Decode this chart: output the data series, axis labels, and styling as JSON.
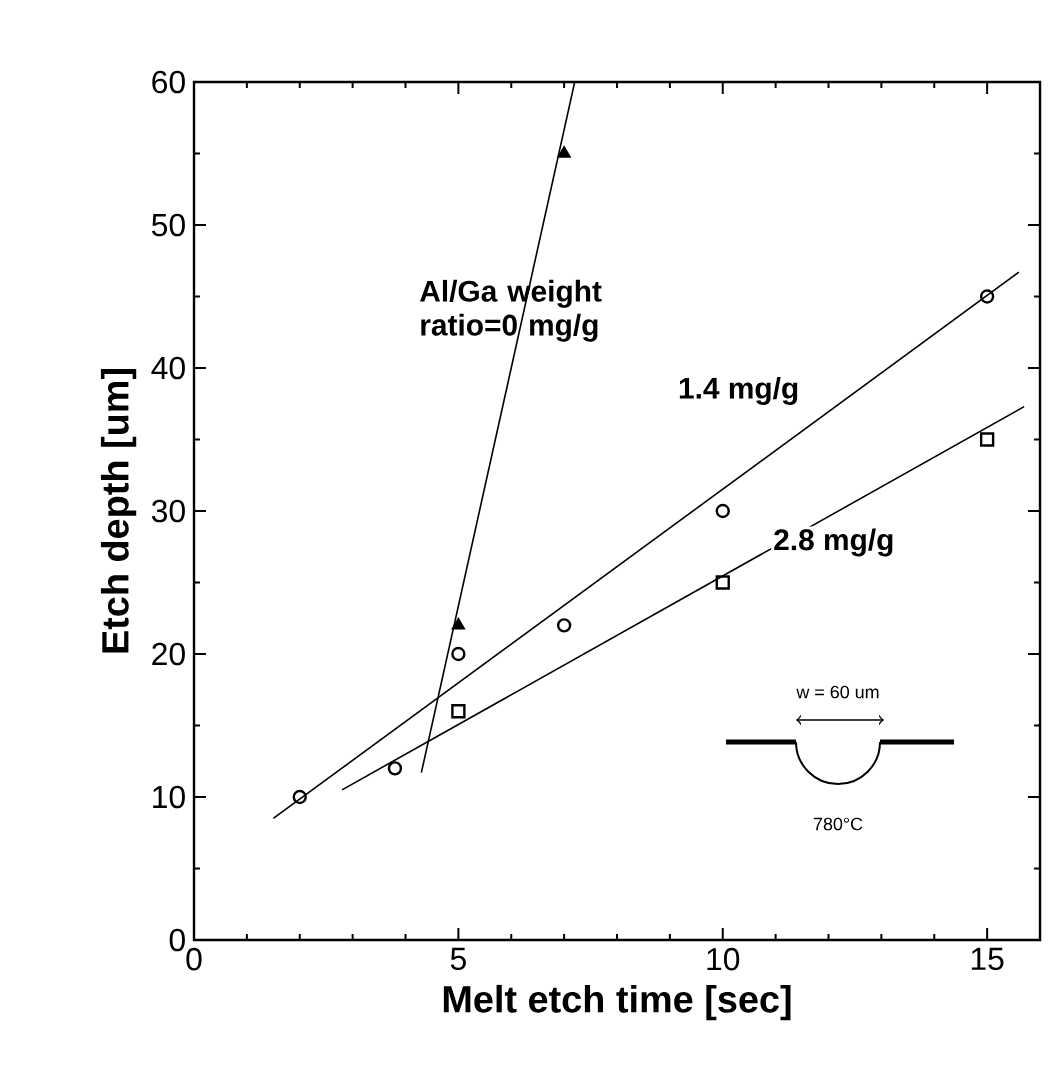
{
  "chart_data": {
    "type": "scatter",
    "xlabel": "Melt etch time [sec]",
    "ylabel": "Etch depth [um]",
    "xlim": [
      0,
      16
    ],
    "ylim": [
      0,
      60
    ],
    "xticks": [
      0,
      5,
      10,
      15
    ],
    "yticks": [
      0,
      10,
      20,
      30,
      40,
      50,
      60
    ],
    "series": [
      {
        "marker": "triangle",
        "color": "#000000",
        "x": [
          5,
          7
        ],
        "values": [
          22,
          55
        ]
      },
      {
        "marker": "circle",
        "color": "#000000",
        "x": [
          2,
          3.8,
          5,
          7,
          10,
          15
        ],
        "values": [
          10,
          12,
          20,
          22,
          30,
          45
        ]
      },
      {
        "marker": "square",
        "color": "#000000",
        "x": [
          5,
          10,
          15
        ],
        "values": [
          16,
          25,
          35
        ]
      },
      {
        "name": "Al/Ga weight ratio=0 mg/g",
        "type": "line",
        "color": "#000000",
        "x": [
          4.3,
          7.2
        ],
        "values": [
          11.7,
          60
        ]
      },
      {
        "name": "1.4 mg/g",
        "type": "line",
        "color": "#000000",
        "x": [
          1.5,
          15.6
        ],
        "values": [
          8.5,
          46.7
        ]
      },
      {
        "name": "2.8 mg/g",
        "type": "line",
        "color": "#000000",
        "x": [
          2.8,
          15.7
        ],
        "values": [
          10.5,
          37.3
        ]
      }
    ],
    "annotations": [
      "w = 60 um",
      "780°C"
    ]
  }
}
